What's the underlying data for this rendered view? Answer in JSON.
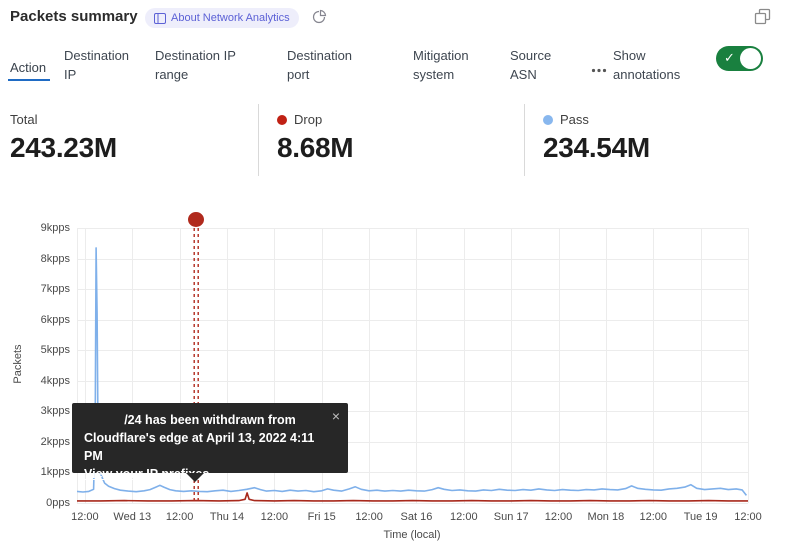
{
  "header": {
    "title": "Packets summary",
    "badge_label": "About Network Analytics",
    "icons": {
      "badge": "book-icon",
      "freshness": "pie-chart-icon",
      "popout": "restore-window-icon",
      "more": "ellipsis-icon"
    }
  },
  "tabs": {
    "items": [
      {
        "label": "Action",
        "active": true
      },
      {
        "label": "Destination IP",
        "active": false
      },
      {
        "label": "Destination IP range",
        "active": false
      },
      {
        "label": "Destination port",
        "active": false
      },
      {
        "label": "Mitigation system",
        "active": false
      },
      {
        "label": "Source ASN",
        "active": false
      }
    ],
    "annotations_label": "Show annotations",
    "annotations_toggle_on": true
  },
  "stats": [
    {
      "label": "Total",
      "value": "243.23M",
      "dot_color": null
    },
    {
      "label": "Drop",
      "value": "8.68M",
      "dot_color": "#c02114"
    },
    {
      "label": "Pass",
      "value": "234.54M",
      "dot_color": "#88b7ee"
    }
  ],
  "tooltip": {
    "line1": "/24 has been withdrawn from",
    "line2": "Cloudflare's edge at April 13, 2022 4:11 PM",
    "link": "View your IP prefixes",
    "close_glyph": "×"
  },
  "colors": {
    "accent_blue": "#1f6bc4",
    "pass_blue": "#7fb0ea",
    "drop_red": "#a8291c",
    "annotation_red": "#b02a1d",
    "toggle_green": "#19803f",
    "badge_bg": "#eeeefb",
    "badge_text": "#5c61d6"
  },
  "chart_data": {
    "type": "line",
    "title": "Packets summary",
    "xlabel": "Time (local)",
    "ylabel": "Packets",
    "yunit": "kpps",
    "ylim": [
      0,
      9
    ],
    "grid": true,
    "legend": [
      "Drop",
      "Pass"
    ],
    "legend_position": "top-stats-row",
    "ytick_labels": [
      "9kpps",
      "8kpps",
      "7kpps",
      "6kpps",
      "5kpps",
      "4kpps",
      "3kpps",
      "2kpps",
      "1kpps",
      "0pps"
    ],
    "xtick_labels": [
      "12:00",
      "Wed 13",
      "12:00",
      "Thu 14",
      "12:00",
      "Fri 15",
      "12:00",
      "Sat 16",
      "12:00",
      "Sun 17",
      "12:00",
      "Mon 18",
      "12:00",
      "Tue 19",
      "12:00"
    ],
    "xtick_hours": [
      2,
      14,
      26,
      38,
      50,
      62,
      74,
      86,
      98,
      110,
      122,
      134,
      146,
      158,
      170
    ],
    "x_domain_hours": [
      0,
      170
    ],
    "x_domain_note": "hours since Apr 12 2022 10:00 local",
    "series": [
      {
        "name": "Pass",
        "color": "#7fb0ea",
        "points": [
          [
            0,
            0.38
          ],
          [
            1.5,
            0.36
          ],
          [
            3,
            0.38
          ],
          [
            4.2,
            0.45
          ],
          [
            4.6,
            2.5
          ],
          [
            4.85,
            8.35
          ],
          [
            5.1,
            6.2
          ],
          [
            5.35,
            1.9
          ],
          [
            5.8,
            1.0
          ],
          [
            6.3,
            0.85
          ],
          [
            7,
            0.65
          ],
          [
            8,
            0.55
          ],
          [
            9.5,
            0.47
          ],
          [
            11,
            0.42
          ],
          [
            13,
            0.39
          ],
          [
            15,
            0.37
          ],
          [
            17,
            0.4
          ],
          [
            18.5,
            0.44
          ],
          [
            20,
            0.52
          ],
          [
            21,
            0.58
          ],
          [
            22,
            0.52
          ],
          [
            23.5,
            0.44
          ],
          [
            25,
            0.4
          ],
          [
            27,
            0.38
          ],
          [
            29,
            0.4
          ],
          [
            31,
            0.38
          ],
          [
            33,
            0.37
          ],
          [
            35,
            0.4
          ],
          [
            37,
            0.42
          ],
          [
            39,
            0.38
          ],
          [
            41,
            0.41
          ],
          [
            43,
            0.45
          ],
          [
            45,
            0.5
          ],
          [
            46.5,
            0.44
          ],
          [
            48,
            0.39
          ],
          [
            50,
            0.41
          ],
          [
            52,
            0.38
          ],
          [
            54,
            0.42
          ],
          [
            56,
            0.39
          ],
          [
            58,
            0.41
          ],
          [
            60,
            0.37
          ],
          [
            62,
            0.4
          ],
          [
            63.5,
            0.46
          ],
          [
            65,
            0.42
          ],
          [
            67,
            0.39
          ],
          [
            69,
            0.46
          ],
          [
            70.5,
            0.53
          ],
          [
            72,
            0.45
          ],
          [
            74,
            0.4
          ],
          [
            76,
            0.42
          ],
          [
            78,
            0.39
          ],
          [
            80,
            0.41
          ],
          [
            82,
            0.39
          ],
          [
            84,
            0.42
          ],
          [
            86,
            0.4
          ],
          [
            88,
            0.39
          ],
          [
            90,
            0.44
          ],
          [
            91.5,
            0.5
          ],
          [
            93,
            0.45
          ],
          [
            95,
            0.41
          ],
          [
            97,
            0.43
          ],
          [
            99,
            0.4
          ],
          [
            101,
            0.39
          ],
          [
            103,
            0.43
          ],
          [
            105,
            0.41
          ],
          [
            107,
            0.45
          ],
          [
            109,
            0.42
          ],
          [
            111,
            0.41
          ],
          [
            113,
            0.44
          ],
          [
            115,
            0.42
          ],
          [
            117,
            0.46
          ],
          [
            119,
            0.43
          ],
          [
            121,
            0.41
          ],
          [
            123,
            0.44
          ],
          [
            125,
            0.42
          ],
          [
            127,
            0.41
          ],
          [
            129,
            0.44
          ],
          [
            131,
            0.43
          ],
          [
            133,
            0.46
          ],
          [
            135,
            0.44
          ],
          [
            137,
            0.43
          ],
          [
            139,
            0.47
          ],
          [
            140.5,
            0.56
          ],
          [
            142,
            0.48
          ],
          [
            144,
            0.45
          ],
          [
            146,
            0.43
          ],
          [
            148,
            0.42
          ],
          [
            150,
            0.46
          ],
          [
            152,
            0.48
          ],
          [
            154,
            0.52
          ],
          [
            155.5,
            0.6
          ],
          [
            157,
            0.48
          ],
          [
            159,
            0.44
          ],
          [
            161,
            0.46
          ],
          [
            163,
            0.48
          ],
          [
            165,
            0.44
          ],
          [
            167,
            0.46
          ],
          [
            168.5,
            0.43
          ],
          [
            169.6,
            0.25
          ]
        ]
      },
      {
        "name": "Drop",
        "color": "#a8291c",
        "points": [
          [
            0,
            0.07
          ],
          [
            6,
            0.07
          ],
          [
            12,
            0.08
          ],
          [
            18,
            0.07
          ],
          [
            24,
            0.07
          ],
          [
            30,
            0.08
          ],
          [
            36,
            0.07
          ],
          [
            41,
            0.08
          ],
          [
            42.6,
            0.12
          ],
          [
            43.1,
            0.33
          ],
          [
            43.6,
            0.12
          ],
          [
            45,
            0.08
          ],
          [
            50,
            0.07
          ],
          [
            55,
            0.08
          ],
          [
            60,
            0.07
          ],
          [
            65,
            0.07
          ],
          [
            70,
            0.08
          ],
          [
            75,
            0.07
          ],
          [
            80,
            0.07
          ],
          [
            85,
            0.08
          ],
          [
            90,
            0.07
          ],
          [
            95,
            0.07
          ],
          [
            100,
            0.08
          ],
          [
            105,
            0.07
          ],
          [
            110,
            0.07
          ],
          [
            115,
            0.08
          ],
          [
            120,
            0.07
          ],
          [
            125,
            0.07
          ],
          [
            130,
            0.08
          ],
          [
            135,
            0.07
          ],
          [
            140,
            0.07
          ],
          [
            145,
            0.08
          ],
          [
            150,
            0.07
          ],
          [
            155,
            0.07
          ],
          [
            160,
            0.08
          ],
          [
            165,
            0.07
          ],
          [
            170,
            0.07
          ]
        ]
      }
    ],
    "annotation": {
      "at_hours": 30.2,
      "style": "double-dashed-vertical-line-with-dot",
      "color": "#b02a1d",
      "text": "/24 has been withdrawn from Cloudflare's edge at April 13, 2022 4:11 PM"
    }
  }
}
